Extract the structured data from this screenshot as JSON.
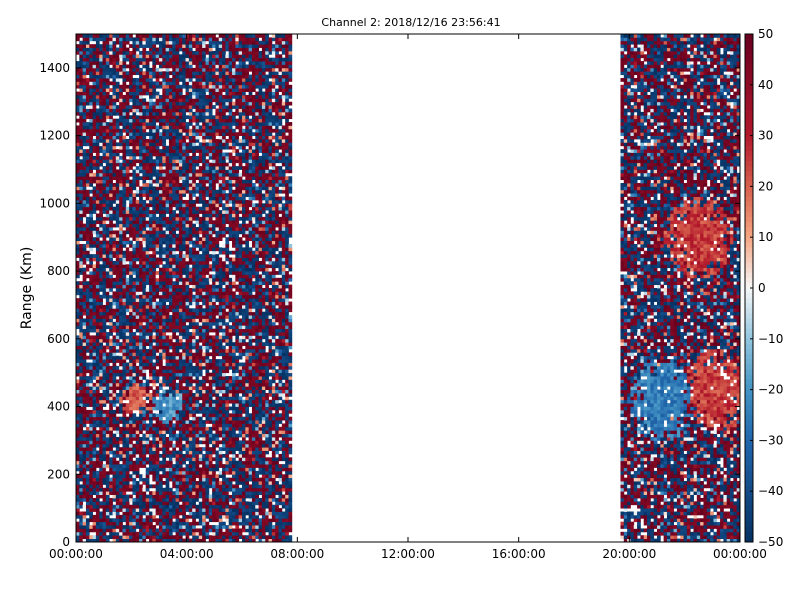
{
  "chart_data": {
    "type": "heatmap",
    "title": "Channel 2: 2018/12/16 23:56:41",
    "xlabel": "",
    "ylabel": "Range (Km)",
    "x_ticks": [
      "00:00:00",
      "04:00:00",
      "08:00:00",
      "12:00:00",
      "16:00:00",
      "20:00:00",
      "00:00:00"
    ],
    "x_range_hours": [
      0,
      24
    ],
    "y_ticks": [
      0,
      200,
      400,
      600,
      800,
      1000,
      1200,
      1400
    ],
    "ylim": [
      0,
      1500
    ],
    "colorbar": {
      "ticks": [
        50,
        40,
        30,
        20,
        10,
        0,
        -10,
        -20,
        -30,
        -40,
        -50
      ],
      "range": [
        -50,
        50
      ],
      "colormap": "RdBu_r",
      "colors": {
        "low": "#053061",
        "mid": "#f7f7f7",
        "high": "#67001f"
      }
    },
    "data_coverage_hours": [
      {
        "start": 0.0,
        "end": 7.8,
        "description": "noisy data"
      },
      {
        "start": 19.7,
        "end": 19.85,
        "description": "data strip"
      },
      {
        "start": 19.95,
        "end": 20.5,
        "description": "data strip"
      },
      {
        "start": 20.6,
        "end": 24.0,
        "description": "noisy data with coherent features"
      }
    ],
    "features": [
      {
        "time_hours": 2.2,
        "range_km": 420,
        "value": 20,
        "note": "positive blob"
      },
      {
        "time_hours": 3.3,
        "range_km": 400,
        "value": -20,
        "note": "negative blob"
      },
      {
        "time_hours": 22.5,
        "range_km": 900,
        "value": 25,
        "note": "positive region"
      },
      {
        "time_hours": 21.2,
        "range_km": 420,
        "value": -25,
        "note": "negative region"
      },
      {
        "time_hours": 23.2,
        "range_km": 450,
        "value": 25,
        "note": "positive region"
      }
    ]
  }
}
